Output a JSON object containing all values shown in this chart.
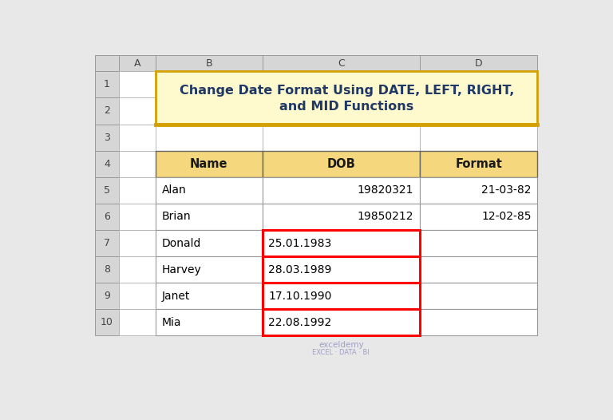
{
  "title_line1": "Change Date Format Using DATE, LEFT, RIGHT,",
  "title_line2": "and MID Functions",
  "title_bg_color": "#FFFACD",
  "title_border_color": "#D4A000",
  "title_text_color": "#1F3864",
  "header_bg_color": "#F5D87E",
  "header_text_color": "#1A1A1A",
  "col_headers": [
    "Name",
    "DOB",
    "Format"
  ],
  "rows": [
    [
      "Alan",
      "19820321",
      "21-03-82"
    ],
    [
      "Brian",
      "19850212",
      "12-02-85"
    ],
    [
      "Donald",
      "25.01.1983",
      ""
    ],
    [
      "Harvey",
      "28.03.1989",
      ""
    ],
    [
      "Janet",
      "17.10.1990",
      ""
    ],
    [
      "Mia",
      "22.08.1992",
      ""
    ]
  ],
  "red_border_rows": [
    2,
    3,
    4,
    5
  ],
  "col_letters": [
    "A",
    "B",
    "C",
    "D"
  ],
  "outer_bg": "#E8E8E8",
  "sheet_bg": "#FFFFFF",
  "grid_color": "#B0B0B0",
  "col_header_bg": "#D6D6D6",
  "row_header_bg": "#D6D6D6",
  "watermark_line1": "exceldemy",
  "watermark_line2": "EXCEL · DATA · BI"
}
